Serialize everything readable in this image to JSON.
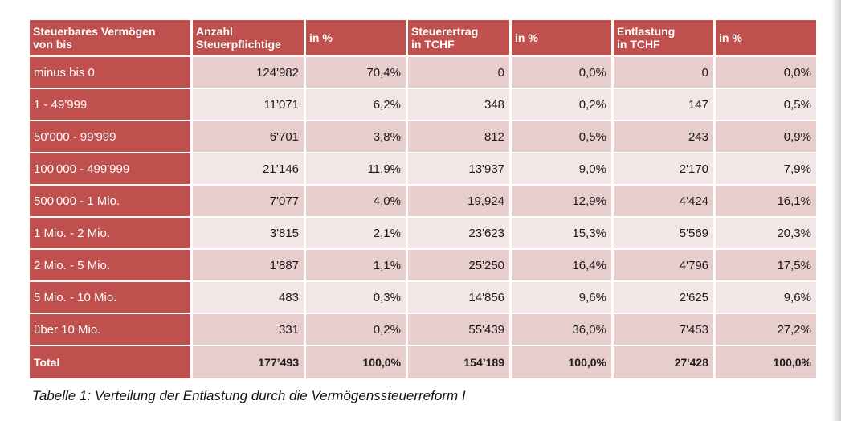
{
  "table": {
    "headers": [
      {
        "line1": "Steuerbares Vermögen",
        "line2": "von bis"
      },
      {
        "line1": "Anzahl",
        "line2": "Steuerpflichtige"
      },
      {
        "line1": "in %",
        "line2": ""
      },
      {
        "line1": "Steuerertrag",
        "line2": "in TCHF"
      },
      {
        "line1": "in %",
        "line2": ""
      },
      {
        "line1": "Entlastung",
        "line2": "in TCHF"
      },
      {
        "line1": "in %",
        "line2": ""
      }
    ],
    "rows": [
      {
        "label": "minus bis 0",
        "count": "124'982",
        "count_pct": "70,4%",
        "revenue": "0",
        "revenue_pct": "0,0%",
        "relief": "0",
        "relief_pct": "0,0%"
      },
      {
        "label": "1 - 49'999",
        "count": "11'071",
        "count_pct": "6,2%",
        "revenue": "348",
        "revenue_pct": "0,2%",
        "relief": "147",
        "relief_pct": "0,5%"
      },
      {
        "label": "50'000 - 99'999",
        "count": "6'701",
        "count_pct": "3,8%",
        "revenue": "812",
        "revenue_pct": "0,5%",
        "relief": "243",
        "relief_pct": "0,9%"
      },
      {
        "label": "100'000 - 499'999",
        "count": "21’146",
        "count_pct": "11,9%",
        "revenue": "13'937",
        "revenue_pct": "9,0%",
        "relief": "2'170",
        "relief_pct": "7,9%"
      },
      {
        "label": "500'000 - 1 Mio.",
        "count": "7'077",
        "count_pct": "4,0%",
        "revenue": "19,924",
        "revenue_pct": "12,9%",
        "relief": "4'424",
        "relief_pct": "16,1%"
      },
      {
        "label": "1 Mio. - 2 Mio.",
        "count": "3'815",
        "count_pct": "2,1%",
        "revenue": "23'623",
        "revenue_pct": "15,3%",
        "relief": "5'569",
        "relief_pct": "20,3%"
      },
      {
        "label": "2 Mio. - 5 Mio.",
        "count": "1'887",
        "count_pct": "1,1%",
        "revenue": "25'250",
        "revenue_pct": "16,4%",
        "relief": "4'796",
        "relief_pct": "17,5%"
      },
      {
        "label": "5 Mio. - 10 Mio.",
        "count": "483",
        "count_pct": "0,3%",
        "revenue": "14'856",
        "revenue_pct": "9,6%",
        "relief": "2'625",
        "relief_pct": "9,6%"
      },
      {
        "label": "über 10 Mio.",
        "count": "331",
        "count_pct": "0,2%",
        "revenue": "55'439",
        "revenue_pct": "36,0%",
        "relief": "7'453",
        "relief_pct": "27,2%"
      }
    ],
    "total": {
      "label": "Total",
      "count": "177’493",
      "count_pct": "100,0%",
      "revenue": "154’189",
      "revenue_pct": "100,0%",
      "relief": "27'428",
      "relief_pct": "100,0%"
    }
  },
  "caption": "Tabelle 1: Verteilung der Entlastung durch die Vermögenssteuerreform I",
  "colors": {
    "header_bg": "#c0504d",
    "row_dark": "#e8cdcd",
    "row_light": "#f3e6e6"
  }
}
